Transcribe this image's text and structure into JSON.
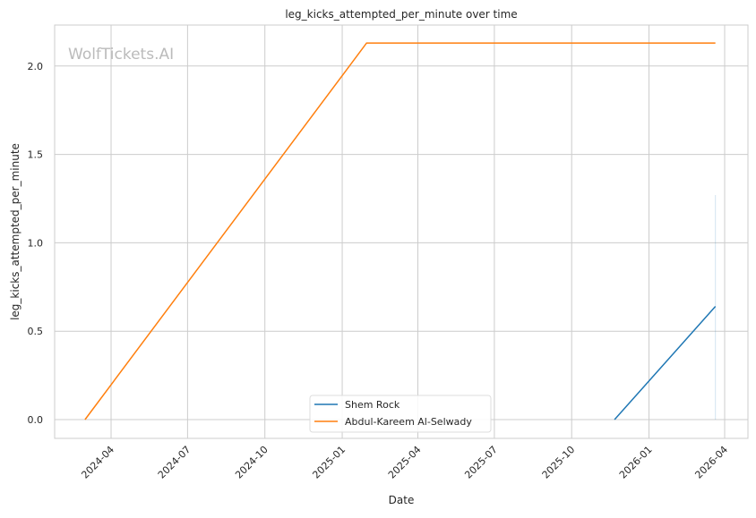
{
  "chart_data": {
    "type": "line",
    "title": "leg_kicks_attempted_per_minute over time",
    "xlabel": "Date",
    "ylabel": "leg_kicks_attempted_per_minute",
    "watermark": "WolfTickets.AI",
    "xlim": [
      "2024-02-05",
      "2026-04-27"
    ],
    "ylim": [
      -0.11,
      2.23
    ],
    "grid": true,
    "legend_position": "bottom-center",
    "x_ticks": [
      "2024-04-01",
      "2024-07-01",
      "2024-10-01",
      "2025-01-01",
      "2025-04-01",
      "2025-07-01",
      "2025-10-01",
      "2026-01-01",
      "2026-04-01"
    ],
    "x_tick_labels": [
      "2024-04",
      "2024-07",
      "2024-10",
      "2025-01",
      "2025-04",
      "2025-07",
      "2025-10",
      "2026-01",
      "2026-04"
    ],
    "y_ticks": [
      0.0,
      0.5,
      1.0,
      1.5,
      2.0
    ],
    "y_tick_labels": [
      "0.0",
      "0.5",
      "1.0",
      "1.5",
      "2.0"
    ],
    "series": [
      {
        "name": "Shem Rock",
        "color": "#1f77b4",
        "x": [
          "2025-11-21",
          "2026-03-21"
        ],
        "y": [
          0.0,
          0.64
        ],
        "band": {
          "x": "2026-03-21",
          "low": 0.0,
          "high": 1.27
        }
      },
      {
        "name": "Abdul-Kareem Al-Selwady",
        "color": "#ff7f0e",
        "x": [
          "2024-03-01",
          "2025-01-30",
          "2026-03-21"
        ],
        "y": [
          0.0,
          2.13,
          2.13
        ]
      }
    ]
  }
}
